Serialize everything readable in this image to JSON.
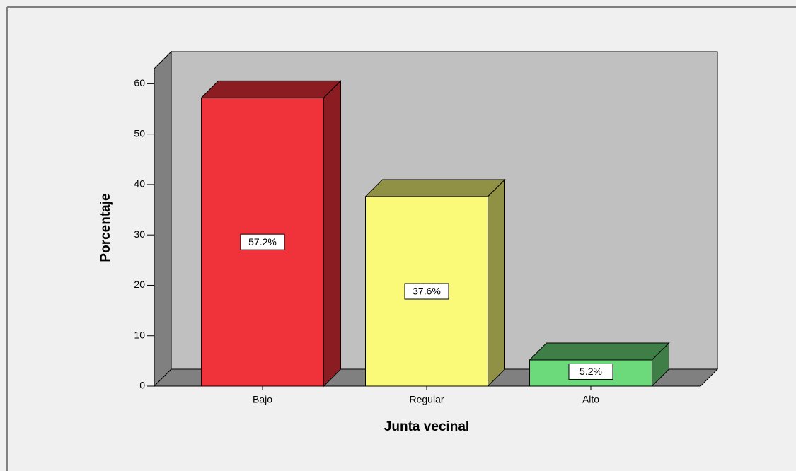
{
  "chart_data": {
    "type": "bar3d",
    "categories": [
      "Bajo",
      "Regular",
      "Alto"
    ],
    "values": [
      57.2,
      37.6,
      5.2
    ],
    "value_labels": [
      "57.2%",
      "37.6%",
      "5.2%"
    ],
    "colors": [
      "#f0323a",
      "#fafa78",
      "#6cd97a"
    ],
    "xlabel": "Junta vecinal",
    "ylabel": "Porcentaje",
    "ylim": [
      0,
      63
    ],
    "yticks": [
      0,
      10,
      20,
      30,
      40,
      50,
      60
    ],
    "grid": false
  }
}
